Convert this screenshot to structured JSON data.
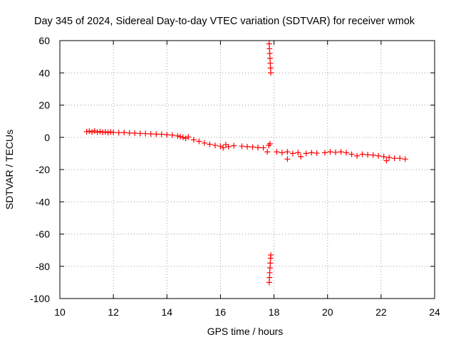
{
  "chart_data": {
    "type": "scatter",
    "title": "Day 345 of 2024, Sidereal Day-to-day VTEC variation (SDTVAR) for receiver wmok",
    "xlabel": "GPS time / hours",
    "ylabel": "SDTVAR / TECUs",
    "xlim": [
      10,
      24
    ],
    "ylim": [
      -100,
      60
    ],
    "xticks": [
      "10",
      "12",
      "14",
      "16",
      "18",
      "20",
      "22",
      "24"
    ],
    "yticks": [
      "-100",
      "-80",
      "-60",
      "-40",
      "-20",
      "0",
      "20",
      "40",
      "60"
    ],
    "grid": true,
    "marker": "+",
    "color": "#ff0000",
    "series": [
      {
        "name": "SDTVAR",
        "points": [
          [
            11.0,
            3.5
          ],
          [
            11.1,
            3.8
          ],
          [
            11.2,
            3.3
          ],
          [
            11.3,
            4.0
          ],
          [
            11.4,
            3.2
          ],
          [
            11.5,
            3.6
          ],
          [
            11.6,
            3.1
          ],
          [
            11.7,
            3.4
          ],
          [
            11.8,
            3.0
          ],
          [
            11.9,
            3.3
          ],
          [
            12.0,
            3.1
          ],
          [
            12.2,
            2.9
          ],
          [
            12.4,
            3.0
          ],
          [
            12.6,
            2.7
          ],
          [
            12.8,
            2.6
          ],
          [
            13.0,
            2.4
          ],
          [
            13.2,
            2.3
          ],
          [
            13.4,
            2.1
          ],
          [
            13.6,
            2.0
          ],
          [
            13.8,
            1.9
          ],
          [
            14.0,
            1.6
          ],
          [
            14.2,
            1.4
          ],
          [
            14.4,
            0.9
          ],
          [
            14.5,
            0.4
          ],
          [
            14.6,
            0.0
          ],
          [
            14.7,
            -0.6
          ],
          [
            14.8,
            0.2
          ],
          [
            15.0,
            -1.5
          ],
          [
            15.2,
            -2.5
          ],
          [
            15.4,
            -3.5
          ],
          [
            15.6,
            -4.3
          ],
          [
            15.8,
            -5.0
          ],
          [
            16.0,
            -5.5
          ],
          [
            16.1,
            -6.5
          ],
          [
            16.2,
            -4.5
          ],
          [
            16.3,
            -5.8
          ],
          [
            16.5,
            -5.2
          ],
          [
            16.8,
            -5.5
          ],
          [
            17.0,
            -5.8
          ],
          [
            17.2,
            -6.0
          ],
          [
            17.4,
            -6.3
          ],
          [
            17.6,
            -6.5
          ],
          [
            17.75,
            -9.0
          ],
          [
            17.8,
            -5.0
          ],
          [
            17.85,
            -4.0
          ],
          [
            17.82,
            58
          ],
          [
            17.83,
            55
          ],
          [
            17.84,
            52
          ],
          [
            17.85,
            49
          ],
          [
            17.86,
            46
          ],
          [
            17.87,
            43
          ],
          [
            17.88,
            40
          ],
          [
            17.82,
            -90
          ],
          [
            17.83,
            -87
          ],
          [
            17.84,
            -84
          ],
          [
            17.85,
            -81
          ],
          [
            17.86,
            -78
          ],
          [
            17.87,
            -75
          ],
          [
            17.88,
            -73
          ],
          [
            18.1,
            -9.0
          ],
          [
            18.3,
            -9.5
          ],
          [
            18.5,
            -9.0
          ],
          [
            18.5,
            -13.5
          ],
          [
            18.7,
            -10.0
          ],
          [
            18.9,
            -9.5
          ],
          [
            19.0,
            -12.0
          ],
          [
            19.2,
            -10.0
          ],
          [
            19.4,
            -9.5
          ],
          [
            19.6,
            -9.8
          ],
          [
            19.9,
            -9.5
          ],
          [
            20.1,
            -9.0
          ],
          [
            20.3,
            -9.3
          ],
          [
            20.5,
            -9.0
          ],
          [
            20.7,
            -9.5
          ],
          [
            20.9,
            -10.5
          ],
          [
            21.1,
            -11.5
          ],
          [
            21.3,
            -10.5
          ],
          [
            21.5,
            -10.8
          ],
          [
            21.7,
            -11.0
          ],
          [
            21.9,
            -11.5
          ],
          [
            22.1,
            -12.0
          ],
          [
            22.2,
            -14.5
          ],
          [
            22.3,
            -12.5
          ],
          [
            22.5,
            -13.0
          ],
          [
            22.7,
            -13.0
          ],
          [
            22.9,
            -13.5
          ]
        ]
      }
    ]
  }
}
